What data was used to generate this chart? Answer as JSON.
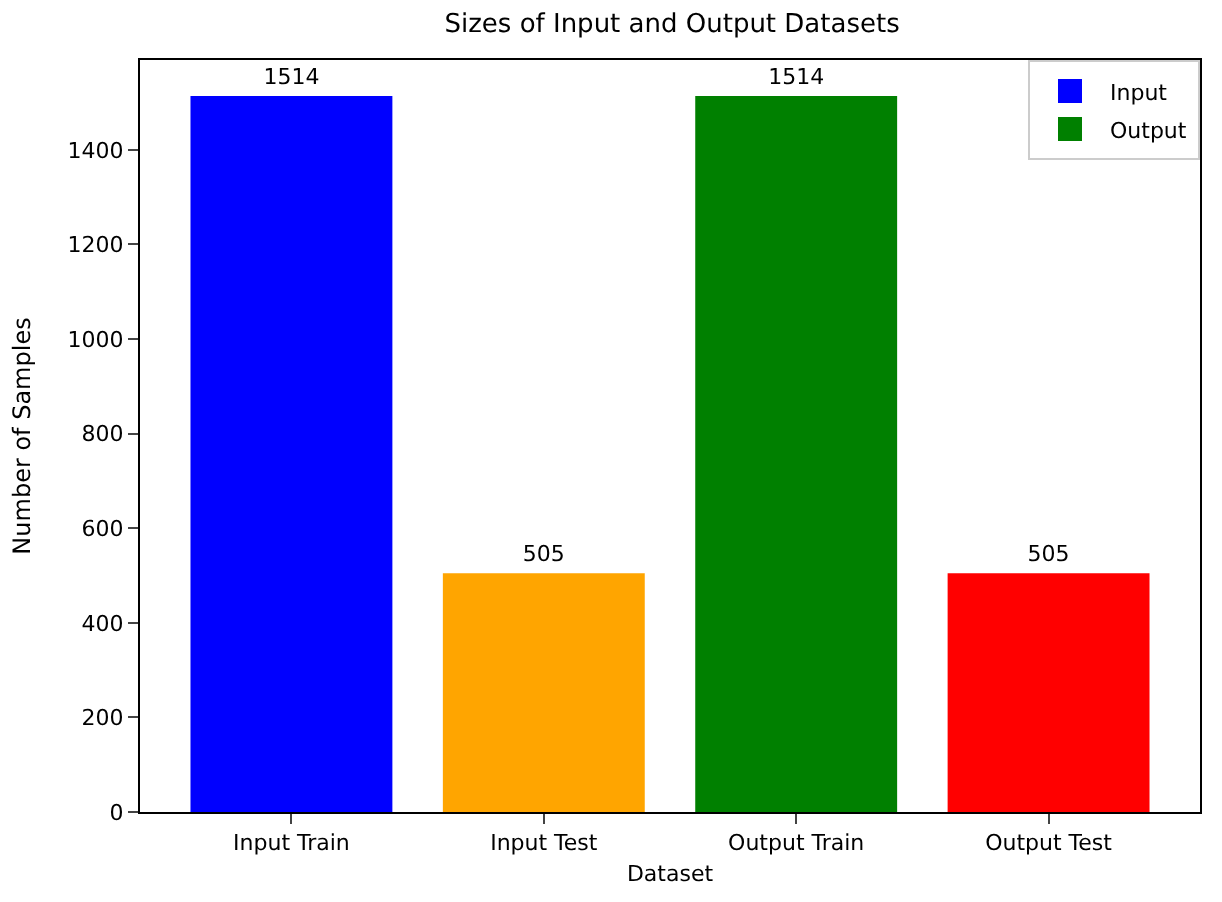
{
  "chart_data": {
    "type": "bar",
    "title": "Sizes of Input and Output Datasets",
    "xlabel": "Dataset",
    "ylabel": "Number of Samples",
    "categories": [
      "Input Train",
      "Input Test",
      "Output Train",
      "Output Test"
    ],
    "series": [
      {
        "name": "Input",
        "colors": [
          "#0000ff",
          "#ffa500",
          null,
          null
        ],
        "values": [
          1514,
          505,
          null,
          null
        ]
      },
      {
        "name": "Output",
        "colors": [
          null,
          null,
          "#008000",
          "#ff0000"
        ],
        "values": [
          null,
          null,
          1514,
          505
        ]
      }
    ],
    "ylim": [
      0,
      1590
    ],
    "yticks": [
      0,
      200,
      400,
      600,
      800,
      1000,
      1200,
      1400
    ],
    "data_labels": true,
    "legend": "top right"
  }
}
